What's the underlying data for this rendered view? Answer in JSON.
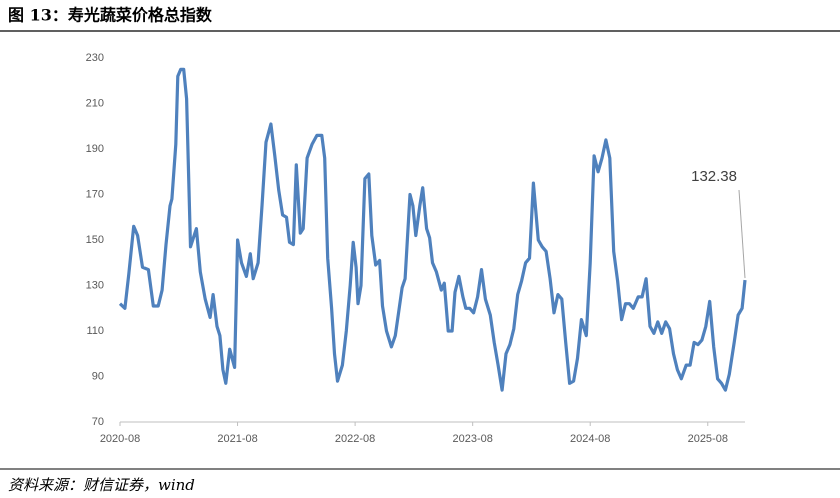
{
  "chart_data": {
    "type": "line",
    "title": "图 13：寿光蔬菜价格总指数",
    "source": "资料来源：财信证券，wind",
    "x": [
      0,
      0.5,
      0.9,
      1.4,
      1.8,
      2.3,
      2.9,
      3.4,
      3.9,
      4.3,
      4.7,
      5.1,
      5.3,
      5.7,
      5.9,
      6.2,
      6.5,
      6.8,
      7.2,
      7.8,
      8.2,
      8.7,
      9.2,
      9.5,
      9.9,
      10.2,
      10.5,
      10.8,
      11.2,
      11.7,
      12.0,
      12.4,
      12.9,
      13.3,
      13.6,
      14.1,
      14.5,
      14.9,
      15.4,
      15.8,
      16.2,
      16.6,
      17.0,
      17.3,
      17.7,
      18.0,
      18.4,
      18.7,
      19.1,
      19.6,
      20.1,
      20.6,
      20.9,
      21.2,
      21.6,
      21.9,
      22.2,
      22.7,
      23.1,
      23.5,
      23.8,
      24.1,
      24.3,
      24.6,
      25.0,
      25.4,
      25.7,
      26.1,
      26.5,
      26.8,
      27.2,
      27.7,
      28.1,
      28.5,
      28.8,
      29.1,
      29.6,
      29.9,
      30.2,
      30.6,
      30.9,
      31.3,
      31.6,
      31.9,
      32.3,
      32.8,
      33.1,
      33.5,
      33.9,
      34.2,
      34.6,
      35.0,
      35.3,
      35.7,
      36.1,
      36.5,
      36.9,
      37.3,
      37.8,
      38.2,
      38.6,
      39.0,
      39.4,
      39.8,
      40.2,
      40.6,
      41.0,
      41.4,
      41.8,
      42.2,
      42.7,
      43.1,
      43.5,
      43.9,
      44.3,
      44.7,
      45.1,
      45.5,
      45.9,
      46.3,
      46.7,
      47.1,
      47.6,
      48.0,
      48.4,
      48.8,
      49.2,
      49.6,
      50.0,
      50.4,
      50.8,
      51.2,
      51.6,
      52.0,
      52.4,
      52.9,
      53.3,
      53.7,
      54.1,
      54.5,
      54.9,
      55.3,
      55.7,
      56.1,
      56.5,
      56.9,
      57.3,
      57.8,
      58.2,
      58.6,
      59.0,
      59.4,
      59.8,
      60.2,
      60.6,
      61.0,
      61.4,
      61.8,
      62.2,
      62.7,
      63.1,
      63.5,
      63.8
    ],
    "series": [
      {
        "color": "#4f81bd",
        "values": [
          122,
          120,
          135,
          156,
          152,
          138,
          137,
          121,
          121,
          128,
          148,
          165,
          168,
          192,
          222,
          225,
          225,
          212,
          147,
          155,
          136,
          124,
          116,
          126,
          112,
          108,
          93,
          87,
          102,
          94,
          150,
          140,
          134,
          144,
          133,
          140,
          165,
          193,
          201,
          187,
          172,
          161,
          160,
          149,
          148,
          183,
          153,
          155,
          186,
          192,
          196,
          196,
          186,
          142,
          120,
          100,
          88,
          95,
          110,
          130,
          149,
          138,
          122,
          130,
          177,
          179,
          152,
          139,
          141,
          121,
          110,
          103,
          108,
          120,
          129,
          133,
          170,
          165,
          152,
          165,
          173,
          155,
          151,
          140,
          136,
          128,
          131,
          110,
          110,
          127,
          134,
          125,
          120,
          120,
          118,
          125,
          137,
          124,
          117,
          105,
          95,
          84,
          100,
          104,
          111,
          126,
          132,
          140,
          142,
          175,
          150,
          147,
          145,
          133,
          118,
          126,
          124,
          105,
          87,
          88,
          98,
          115,
          108,
          140,
          187,
          180,
          186,
          194,
          186,
          145,
          132,
          115,
          122,
          122,
          120,
          125,
          125,
          133,
          112,
          109,
          114,
          109,
          114,
          111,
          100,
          93,
          89,
          95,
          95,
          105,
          104,
          106,
          112,
          123,
          103,
          89,
          87,
          84,
          91,
          105,
          117,
          120,
          132.38
        ]
      }
    ],
    "xlim": [
      0,
      63.8
    ],
    "xticks": [
      {
        "value": 0,
        "label": "2020-08"
      },
      {
        "value": 12,
        "label": "2021-08"
      },
      {
        "value": 24,
        "label": "2022-08"
      },
      {
        "value": 36,
        "label": "2023-08"
      },
      {
        "value": 48,
        "label": "2024-08"
      },
      {
        "value": 60,
        "label": "2025-08"
      }
    ],
    "ylim": [
      70,
      230
    ],
    "yticks": [
      70,
      90,
      110,
      130,
      150,
      170,
      190,
      210,
      230
    ],
    "grid": false
  }
}
